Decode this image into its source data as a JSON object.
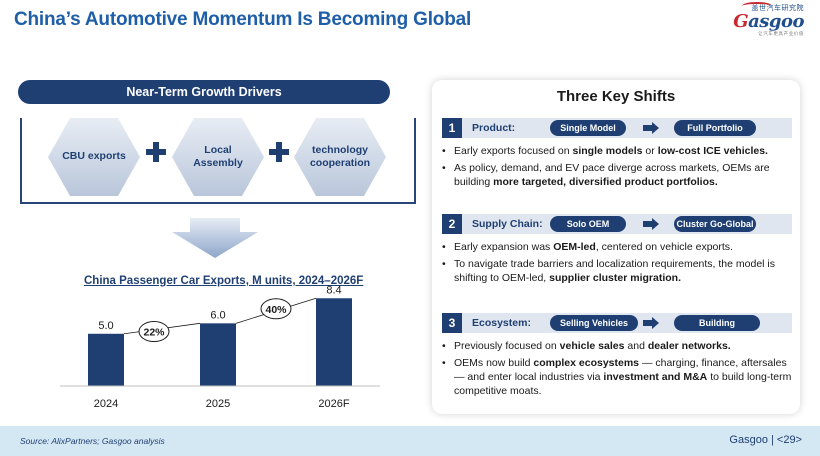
{
  "title": "China’s Automotive Momentum Is Becoming Global",
  "logo": {
    "cn": "盖世汽车研究院",
    "brand_g": "G",
    "brand_rest": "asgoo",
    "tagline": "让汽车更具产业价值"
  },
  "drivers": {
    "heading": "Near-Term Growth Drivers",
    "items": [
      "CBU exports",
      "Local Assembly",
      "technology cooperation"
    ]
  },
  "chart_data": {
    "type": "bar",
    "title": "China Passenger Car Exports, M units, 2024–2026F",
    "categories": [
      "2024",
      "2025",
      "2026F"
    ],
    "values": [
      5.0,
      6.0,
      8.4
    ],
    "value_labels": [
      "5.0",
      "6.0",
      "8.4"
    ],
    "growth_labels": [
      "22%",
      "40%"
    ],
    "ylim": [
      0,
      9
    ],
    "color": "#1f3f73"
  },
  "shifts": {
    "heading": "Three Key Shifts",
    "items": [
      {
        "num": "1",
        "category": "Product:",
        "from": "Single Model",
        "to": "Full Portfolio",
        "bullets": [
          [
            {
              "t": "Early exports focused on "
            },
            {
              "t": "single models",
              "b": true
            },
            {
              "t": " or "
            },
            {
              "t": "low-cost ICE vehicles.",
              "b": true
            }
          ],
          [
            {
              "t": "As policy, demand, and EV pace diverge across markets, OEMs are building "
            },
            {
              "t": "more targeted, diversified product portfolios.",
              "b": true
            }
          ]
        ]
      },
      {
        "num": "2",
        "category": "Supply Chain:",
        "from": "Solo OEM",
        "to": "Cluster Go-Global",
        "bullets": [
          [
            {
              "t": "Early expansion was "
            },
            {
              "t": "OEM-led",
              "b": true
            },
            {
              "t": ", centered on vehicle exports."
            }
          ],
          [
            {
              "t": "To navigate trade barriers and localization requirements, the model is shifting to OEM-led, "
            },
            {
              "t": "supplier cluster migration.",
              "b": true
            }
          ]
        ]
      },
      {
        "num": "3",
        "category": "Ecosystem:",
        "from": "Selling Vehicles",
        "to": "Building Ecosystems",
        "bullets": [
          [
            {
              "t": "Previously focused on "
            },
            {
              "t": "vehicle sales",
              "b": true
            },
            {
              "t": " and "
            },
            {
              "t": "dealer networks.",
              "b": true
            }
          ],
          [
            {
              "t": "OEMs now build "
            },
            {
              "t": "complex ecosystems",
              "b": true
            },
            {
              "t": " — charging, finance, aftersales — and enter local industries via "
            },
            {
              "t": "investment and M&A",
              "b": true
            },
            {
              "t": " to build long-term competitive moats."
            }
          ]
        ]
      }
    ]
  },
  "footer": {
    "source": "Source:  AlixPartners; Gasgoo analysis",
    "page": "Gasgoo | <29>"
  }
}
